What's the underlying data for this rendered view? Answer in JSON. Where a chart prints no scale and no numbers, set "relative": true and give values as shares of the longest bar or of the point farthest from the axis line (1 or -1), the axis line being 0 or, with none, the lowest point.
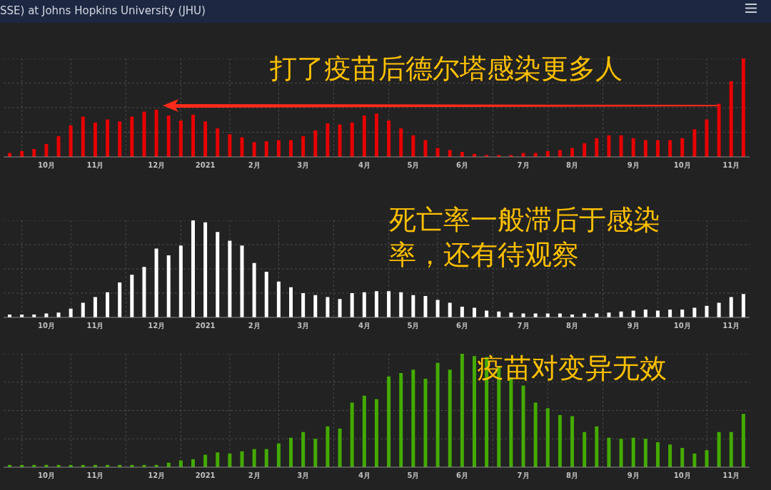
{
  "chart_data": [
    {
      "type": "bar",
      "title": "SSE) at Johns Hopkins University (JHU)",
      "relative": true,
      "grid": true,
      "color": "#e80000",
      "categories": [
        null,
        null,
        null,
        "10月",
        null,
        null,
        null,
        "11月",
        null,
        null,
        null,
        null,
        "12月",
        null,
        null,
        null,
        "2021",
        null,
        null,
        null,
        "2月",
        null,
        null,
        null,
        "3月",
        null,
        null,
        null,
        null,
        "4月",
        null,
        null,
        null,
        "5月",
        null,
        null,
        null,
        "6月",
        null,
        null,
        null,
        null,
        "7月",
        null,
        null,
        null,
        "8月",
        null,
        null,
        null,
        null,
        "9月",
        null,
        null,
        null,
        "10月",
        null,
        null,
        null,
        "11月",
        null
      ],
      "values": [
        0.04,
        0.06,
        0.08,
        0.13,
        0.21,
        0.32,
        0.41,
        0.35,
        0.38,
        0.36,
        0.41,
        0.46,
        0.48,
        0.42,
        0.37,
        0.43,
        0.36,
        0.29,
        0.23,
        0.2,
        0.15,
        0.16,
        0.17,
        0.17,
        0.21,
        0.27,
        0.34,
        0.33,
        0.35,
        0.42,
        0.44,
        0.37,
        0.29,
        0.22,
        0.17,
        0.09,
        0.07,
        0.05,
        0.03,
        0.02,
        0.02,
        0.02,
        0.04,
        0.04,
        0.06,
        0.07,
        0.09,
        0.14,
        0.19,
        0.22,
        0.22,
        0.19,
        0.17,
        0.17,
        0.17,
        0.19,
        0.28,
        0.38,
        0.54,
        0.77,
        1
      ],
      "annotations": [
        "打了疫苗后德尔塔感染更多人"
      ]
    },
    {
      "type": "bar",
      "relative": true,
      "grid": true,
      "color": "#ffffff",
      "categories": [
        null,
        null,
        null,
        "10月",
        null,
        null,
        null,
        "11月",
        null,
        null,
        null,
        null,
        "12月",
        null,
        null,
        null,
        "2021",
        null,
        null,
        null,
        "2月",
        null,
        null,
        null,
        "3月",
        null,
        null,
        null,
        null,
        "4月",
        null,
        null,
        null,
        "5月",
        null,
        null,
        null,
        "6月",
        null,
        null,
        null,
        null,
        "7月",
        null,
        null,
        null,
        "8月",
        null,
        null,
        null,
        null,
        "9月",
        null,
        null,
        null,
        "10月",
        null,
        null,
        null,
        "11月",
        null
      ],
      "values": [
        0.03,
        0.03,
        0.03,
        0.04,
        0.05,
        0.09,
        0.15,
        0.21,
        0.26,
        0.36,
        0.44,
        0.52,
        0.71,
        0.64,
        0.74,
        1,
        0.98,
        0.88,
        0.79,
        0.74,
        0.56,
        0.47,
        0.37,
        0.31,
        0.25,
        0.23,
        0.21,
        0.19,
        0.25,
        0.26,
        0.27,
        0.27,
        0.26,
        0.23,
        0.22,
        0.18,
        0.15,
        0.11,
        0.1,
        0.07,
        0.06,
        0.05,
        0.04,
        0.04,
        0.04,
        0.04,
        0.03,
        0.04,
        0.04,
        0.05,
        0.06,
        0.07,
        0.08,
        0.07,
        0.08,
        0.08,
        0.1,
        0.12,
        0.15,
        0.21,
        0.24
      ],
      "annotations": [
        "死亡率一般滞后于感染率，还有待观察"
      ]
    },
    {
      "type": "bar",
      "relative": true,
      "grid": true,
      "color": "#44aa00",
      "categories": [
        null,
        null,
        null,
        "10月",
        null,
        null,
        null,
        "11月",
        null,
        null,
        null,
        null,
        "12月",
        null,
        null,
        null,
        "2021",
        null,
        null,
        null,
        "2月",
        null,
        null,
        null,
        "3月",
        null,
        null,
        null,
        null,
        "4月",
        null,
        null,
        null,
        "5月",
        null,
        null,
        null,
        "6月",
        null,
        null,
        null,
        null,
        "7月",
        null,
        null,
        null,
        "8月",
        null,
        null,
        null,
        null,
        "9月",
        null,
        null,
        null,
        "10月",
        null,
        null,
        null,
        "11月",
        null
      ],
      "values": [
        0.02,
        0.02,
        0.02,
        0.02,
        0.02,
        0.02,
        0.02,
        0.02,
        0.02,
        0.02,
        0.02,
        0.02,
        0.02,
        0.04,
        0.06,
        0.07,
        0.11,
        0.13,
        0.12,
        0.14,
        0.16,
        0.16,
        0.21,
        0.26,
        0.31,
        0.25,
        0.36,
        0.34,
        0.57,
        0.63,
        0.6,
        0.8,
        0.83,
        0.86,
        0.78,
        0.92,
        0.86,
        1,
        0.98,
        0.97,
        0.89,
        0.79,
        0.72,
        0.57,
        0.52,
        0.46,
        0.45,
        0.31,
        0.36,
        0.26,
        0.25,
        0.26,
        0.25,
        0.22,
        0.2,
        0.17,
        0.12,
        0.15,
        0.31,
        0.31,
        0.47
      ],
      "annotations": [
        "疫苗对变异无效"
      ]
    }
  ]
}
